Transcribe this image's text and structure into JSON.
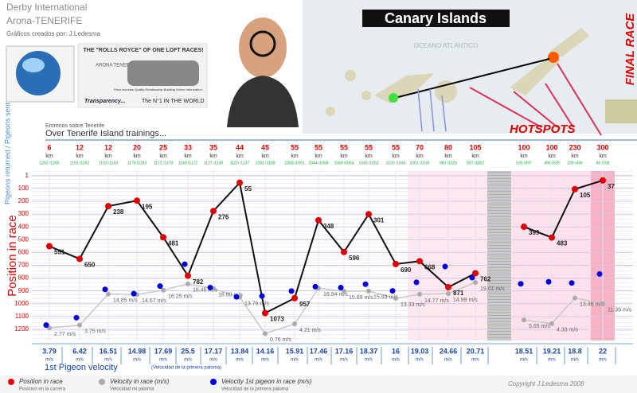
{
  "header": {
    "line1": "Derby International",
    "line2": "Arona-TENERIFE",
    "credit": "Gráficos creados por: J.Ledesma"
  },
  "ad": {
    "headline": "THE \"ROLLS ROYCE\" OF ONE LOFT RACES!",
    "brand": "ARONA TENERIFE",
    "note": "Price includes Quality Relationship Building Online Information...",
    "transparency": "Transparency...",
    "slogan": "The N°1 IN THE WORLD"
  },
  "map": {
    "title": "Canary Islands",
    "ocean": "OCEANO ATLANTICO",
    "hotspots": "HOTSPOTS",
    "final": "FINAL RACE"
  },
  "section": {
    "small": "Entrenos sobre Tenerife",
    "main": "Over Tenerife Island trainings..."
  },
  "chart_data": {
    "type": "line",
    "categories": [
      "6",
      "12",
      "12",
      "20",
      "25",
      "33",
      "35",
      "44",
      "45",
      "55",
      "55",
      "55",
      "55",
      "55",
      "70",
      "80",
      "105",
      null,
      "100",
      "100",
      "230",
      "300"
    ],
    "distance_unit": "km",
    "returned_sent": [
      "1262 /1265",
      "1193 /1262",
      "1193 /1193",
      "1178 /1193",
      "1172 /1178",
      "1149 /1172",
      "1137 /1149",
      "1120 /1137",
      "1091 /1108",
      "1058 /1091",
      "1044 /1058",
      "1049 /1064",
      "1045 /1052",
      "1030 /1045",
      "1001 /1035",
      "983 /1026",
      "997 /1002",
      null,
      "535 /997",
      "496 /535",
      "209 /496",
      "49 /208"
    ],
    "returned_label": "Pigeons returned / Pigeons sent",
    "ylabel": "Position in race",
    "ylim": [
      1,
      1250
    ],
    "reversed": true,
    "yticks": [
      1,
      100,
      200,
      300,
      400,
      500,
      600,
      700,
      800,
      900,
      1000,
      1100,
      1200
    ],
    "y2lim": [
      0,
      57
    ],
    "series": [
      {
        "name": "Position in race",
        "sublabel": "Posicion en la carrera",
        "color": "#e00000",
        "values": [
          551,
          650,
          238,
          195,
          481,
          782,
          276,
          55,
          1073,
          957,
          348,
          596,
          301,
          690,
          668,
          871,
          762,
          null,
          399,
          483,
          105,
          37
        ]
      },
      {
        "name": "Velocity in race (m/s)",
        "sublabel": "Velocidad mi paloma",
        "color": "#aaaaaa",
        "axis": "y2",
        "values": [
          2.77,
          3.75,
          14.85,
          14.67,
          16.25,
          18.46,
          16.8,
          13.76,
          0.76,
          4.21,
          16.94,
          15.89,
          15.93,
          13.33,
          14.77,
          14.99,
          19.01,
          null,
          5.65,
          4.33,
          13.46,
          11.39
        ],
        "value_labels": [
          "2.77 m/s",
          "3.75 m/s",
          "14.85 m/s",
          "14.67 m/s",
          "16.25 m/s",
          "18.46 m/s",
          "16.80 m/s",
          "13.76 m/s",
          "0.76 m/s",
          "4.21 m/s",
          "16.94 m/s",
          "15.89 m/s",
          "15.93 m/s",
          "13.33 m/s",
          "14.77 m/s",
          "14.99 m/s",
          "19.01 m/s",
          null,
          "5.65 m/s",
          "4.33 m/s",
          "13.46 m/s",
          "11.39 m/s"
        ]
      },
      {
        "name": "Velocity 1st pigeon in race (m/s)",
        "sublabel": "Velocidad de la primera paloma",
        "color": "#0000dd",
        "axis": "y2",
        "values": [
          3.79,
          6.42,
          16.51,
          14.98,
          17.69,
          25.5,
          17.17,
          13.84,
          14.16,
          15.91,
          17.46,
          17.16,
          18.37,
          16.0,
          19.03,
          24.66,
          20.71,
          null,
          18.51,
          19.21,
          18.8,
          22.0
        ]
      }
    ],
    "velocity_unit": "m/s",
    "velocity_row_title": "1st Pigeon velocity",
    "velocity_row_sub": "(Velocidad de la primera paloma)"
  },
  "copyright": "Copyright J.Ledesma 2008"
}
